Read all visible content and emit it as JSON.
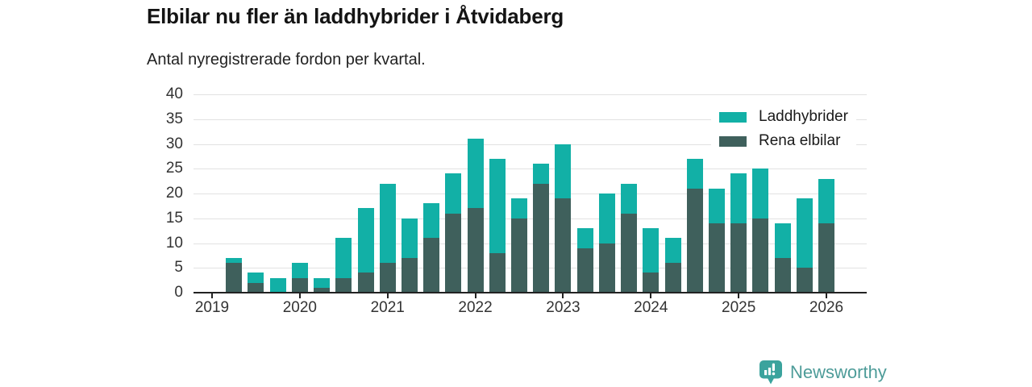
{
  "header": {
    "title": "Elbilar nu fler än laddhybrider i Åtvidaberg",
    "subtitle": "Antal nyregistrerade fordon per kvartal."
  },
  "chart_data": {
    "type": "bar",
    "stacked": true,
    "title": "Elbilar nu fler än laddhybrider i Åtvidaberg",
    "subtitle": "Antal nyregistrerade fordon per kvartal.",
    "quarters": [
      "2019 Q1",
      "2019 Q2",
      "2019 Q3",
      "2019 Q4",
      "2020 Q1",
      "2020 Q2",
      "2020 Q3",
      "2020 Q4",
      "2021 Q1",
      "2021 Q2",
      "2021 Q3",
      "2021 Q4",
      "2022 Q1",
      "2022 Q2",
      "2022 Q3",
      "2022 Q4",
      "2023 Q1",
      "2023 Q2",
      "2023 Q3",
      "2023 Q4",
      "2024 Q1",
      "2024 Q2",
      "2024 Q3",
      "2024 Q4",
      "2025 Q1",
      "2025 Q2",
      "2025 Q3",
      "2025 Q4",
      "2026 Q1"
    ],
    "series": [
      {
        "name": "Laddhybrider",
        "color": "#12B0A6",
        "stack_position": "top",
        "values": [
          0,
          1,
          2,
          3,
          3,
          2,
          8,
          13,
          16,
          8,
          7,
          8,
          14,
          19,
          4,
          4,
          11,
          4,
          10,
          6,
          9,
          5,
          6,
          7,
          10,
          10,
          7,
          14,
          9
        ]
      },
      {
        "name": "Rena elbilar",
        "color": "#3F605C",
        "stack_position": "bottom",
        "values": [
          0,
          6,
          2,
          0,
          3,
          1,
          3,
          4,
          6,
          7,
          11,
          16,
          17,
          8,
          15,
          22,
          19,
          9,
          10,
          16,
          4,
          6,
          21,
          14,
          14,
          15,
          7,
          5,
          14
        ]
      }
    ],
    "totals": [
      0,
      7,
      4,
      3,
      6,
      3,
      11,
      17,
      22,
      15,
      18,
      24,
      31,
      27,
      19,
      26,
      30,
      13,
      20,
      22,
      13,
      11,
      27,
      21,
      24,
      25,
      14,
      19,
      23
    ],
    "x_year_labels": [
      "2019",
      "2020",
      "2021",
      "2022",
      "2023",
      "2024",
      "2025",
      "2026"
    ],
    "y_ticks": [
      0,
      5,
      10,
      15,
      20,
      25,
      30,
      35,
      40
    ],
    "ylim": [
      0,
      40
    ],
    "grid": true,
    "grid_color": "#E2E2E2",
    "axis_color": "#222222",
    "tick_label_color": "#333333",
    "legend_position": "top-right"
  },
  "footer": {
    "brand": "Newsworthy",
    "badge_icon": "bar-chart-pin-icon",
    "badge_color": "#3BA39D",
    "text_color": "#4E9C99"
  }
}
